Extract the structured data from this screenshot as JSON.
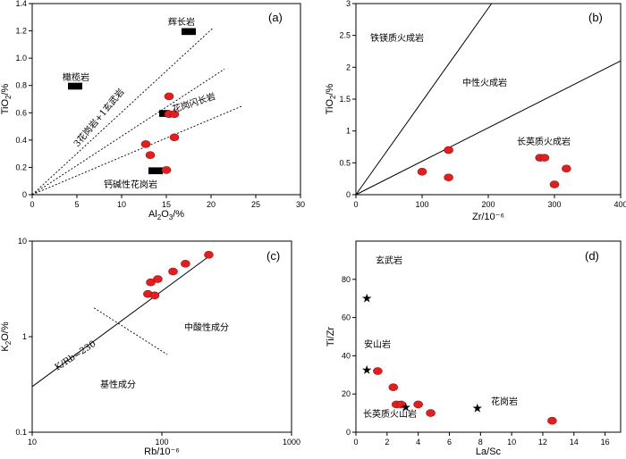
{
  "chart_data": [
    {
      "type": "scatter",
      "panel_label": "(a)",
      "xlabel": "Al2O3/%",
      "ylabel": "TiO2/%",
      "xlim": [
        0,
        30
      ],
      "ylim": [
        0,
        1.4
      ],
      "xticks": [
        0,
        5,
        10,
        15,
        20,
        25,
        30
      ],
      "yticks": [
        0,
        0.2,
        0.4,
        0.6,
        0.8,
        1.0,
        1.2,
        1.4
      ],
      "series": [
        {
          "marker": "circle",
          "color": "#e02020",
          "points": [
            [
              15.3,
              0.72
            ],
            [
              15.3,
              0.59
            ],
            [
              15.9,
              0.59
            ],
            [
              15.9,
              0.42
            ],
            [
              12.7,
              0.37
            ],
            [
              13.2,
              0.29
            ],
            [
              15.0,
              0.18
            ]
          ]
        }
      ],
      "reference_fields": [
        {
          "label": "辉长岩",
          "x": [
            16.7,
            18.3
          ],
          "y": [
            1.17,
            1.22
          ]
        },
        {
          "label": "橄榄岩",
          "x": [
            4.0,
            5.6
          ],
          "y": [
            0.77,
            0.82
          ]
        },
        {
          "label": "",
          "x": [
            14.2,
            15.4
          ],
          "y": [
            0.57,
            0.62
          ]
        },
        {
          "label": "",
          "x": [
            13.0,
            14.6
          ],
          "y": [
            0.15,
            0.2
          ]
        }
      ],
      "lines": [
        {
          "style": "dashed",
          "x": [
            0,
            20.2
          ],
          "y": [
            0,
            1.22
          ]
        },
        {
          "style": "dashed",
          "x": [
            0,
            21.5
          ],
          "y": [
            0,
            0.92
          ]
        },
        {
          "style": "dashed",
          "x": [
            0,
            23.5
          ],
          "y": [
            0,
            0.65
          ]
        }
      ],
      "annotations": [
        "辉长岩",
        "橄榄岩",
        "3花岗岩+1玄武岩",
        "花岗闪长岩",
        "钙碱性花岗岩"
      ]
    },
    {
      "type": "scatter",
      "panel_label": "(b)",
      "xlabel": "Zr/10⁻⁶",
      "ylabel": "TiO2/%",
      "xlim": [
        0,
        400
      ],
      "ylim": [
        0,
        3.0
      ],
      "xticks": [
        0,
        100,
        200,
        300,
        400
      ],
      "yticks": [
        0,
        0.5,
        1.0,
        1.5,
        2.0,
        2.5,
        3.0
      ],
      "series": [
        {
          "marker": "circle",
          "color": "#e02020",
          "points": [
            [
              100,
              0.36
            ],
            [
              140,
              0.7
            ],
            [
              140,
              0.27
            ],
            [
              278,
              0.58
            ],
            [
              285,
              0.58
            ],
            [
              300,
              0.16
            ],
            [
              318,
              0.41
            ]
          ]
        }
      ],
      "lines": [
        {
          "style": "solid",
          "x": [
            0,
            205
          ],
          "y": [
            0,
            3.0
          ]
        },
        {
          "style": "solid",
          "x": [
            0,
            400
          ],
          "y": [
            0,
            2.1
          ]
        }
      ],
      "annotations": [
        "铁镁质火成岩",
        "中性火成岩",
        "长英质火成岩"
      ]
    },
    {
      "type": "scatter",
      "panel_label": "(c)",
      "xlabel": "Rb/10⁻⁶",
      "ylabel": "K2O/%",
      "xscale": "log",
      "yscale": "log",
      "xlim": [
        10,
        1000
      ],
      "ylim": [
        0.1,
        10
      ],
      "xticks": [
        10,
        100,
        1000
      ],
      "yticks": [
        0.1,
        1,
        10
      ],
      "series": [
        {
          "marker": "circle",
          "color": "#e02020",
          "points": [
            [
              78,
              2.8
            ],
            [
              82,
              3.7
            ],
            [
              88,
              2.7
            ],
            [
              93,
              4.0
            ],
            [
              122,
              4.8
            ],
            [
              152,
              5.8
            ],
            [
              230,
              7.2
            ]
          ]
        }
      ],
      "lines": [
        {
          "style": "solid",
          "label": "K/Rb=230",
          "x": [
            10,
            230
          ],
          "y": [
            0.3,
            6.9
          ]
        },
        {
          "style": "dotted",
          "x": [
            30,
            110
          ],
          "y": [
            2.0,
            0.65
          ]
        }
      ],
      "annotations": [
        "K/Rb=230",
        "中酸性成分",
        "基性成分"
      ]
    },
    {
      "type": "scatter",
      "panel_label": "(d)",
      "xlabel": "La/Sc",
      "ylabel": "Ti/Zr",
      "xlim": [
        0,
        17
      ],
      "ylim": [
        0,
        100
      ],
      "xticks": [
        0,
        2,
        4,
        6,
        8,
        10,
        12,
        14,
        16
      ],
      "yticks": [
        0,
        20,
        40,
        60,
        80
      ],
      "series": [
        {
          "marker": "circle",
          "color": "#e02020",
          "points": [
            [
              1.4,
              32
            ],
            [
              2.4,
              23.5
            ],
            [
              2.6,
              14.5
            ],
            [
              2.9,
              14.5
            ],
            [
              4.0,
              14.5
            ],
            [
              4.8,
              10
            ],
            [
              12.6,
              6
            ]
          ]
        },
        {
          "marker": "star",
          "color": "#000000",
          "points": [
            [
              0.7,
              70
            ],
            [
              0.7,
              32.5
            ],
            [
              3.2,
              13
            ],
            [
              7.8,
              12.5
            ]
          ]
        }
      ],
      "annotations": [
        "玄武岩",
        "安山岩",
        "长英质火山岩",
        "花岗岩"
      ]
    }
  ]
}
